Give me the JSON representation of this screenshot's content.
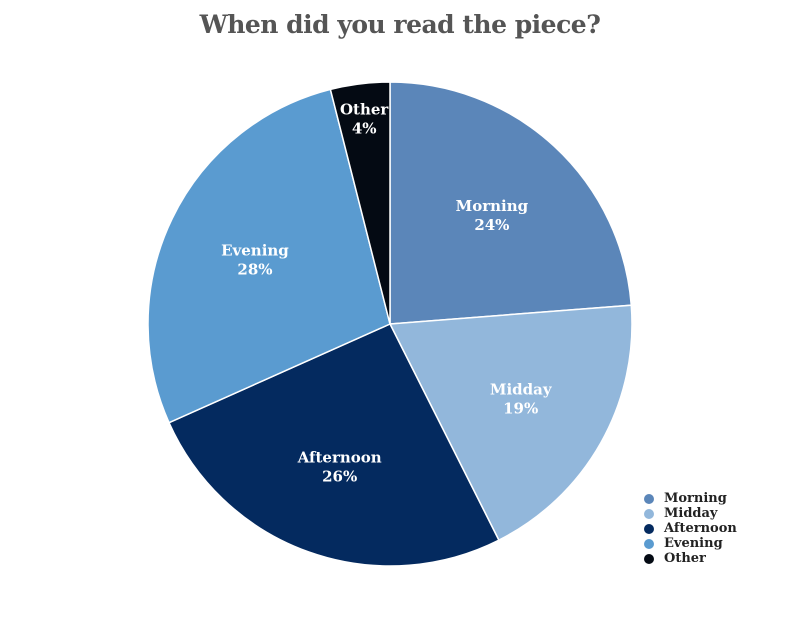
{
  "chart_data": {
    "type": "pie",
    "title": "When did you read the piece?",
    "slices": [
      {
        "label": "Morning",
        "value": 24,
        "value_label": "24%",
        "color": "#5b86b9"
      },
      {
        "label": "Midday",
        "value": 19,
        "value_label": "19%",
        "color": "#92b7db"
      },
      {
        "label": "Afternoon",
        "value": 26,
        "value_label": "26%",
        "color": "#042a5f"
      },
      {
        "label": "Evening",
        "value": 28,
        "value_label": "28%",
        "color": "#5a9bd0"
      },
      {
        "label": "Other",
        "value": 4,
        "value_label": "4%",
        "color": "#040a13"
      }
    ],
    "legend": {
      "position": "bottom-right",
      "items": [
        "Morning",
        "Midday",
        "Afternoon",
        "Evening",
        "Other"
      ]
    }
  }
}
